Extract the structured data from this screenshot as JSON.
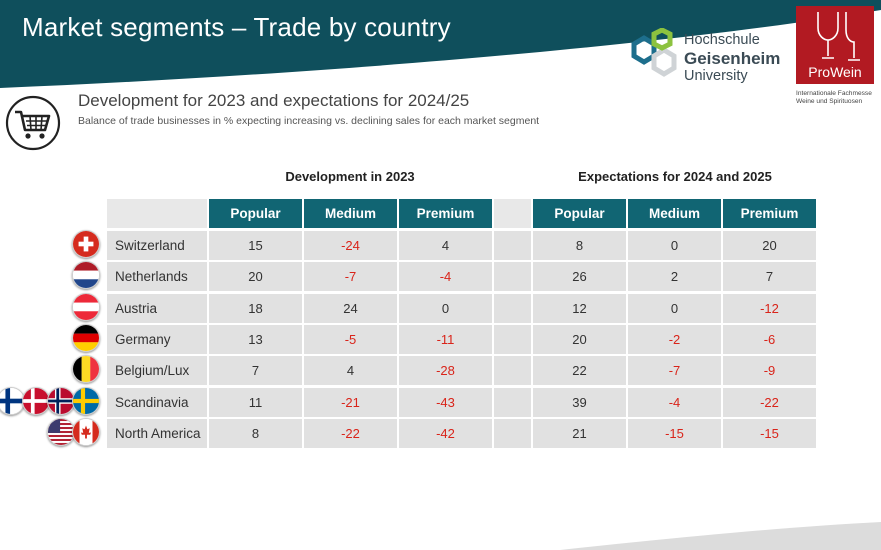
{
  "header": {
    "title": "Market segments – Trade by country"
  },
  "logos": {
    "hochschule_lines": [
      "Hochschule",
      "Geisenheim",
      "University"
    ],
    "prowein_name": "ProWein",
    "prowein_sub_lines": [
      "Internationale Fachmesse",
      "Weine und Spirituosen"
    ]
  },
  "section": {
    "subtitle": "Development for 2023 and expectations for 2024/25",
    "caption": "Balance of trade businesses in % expecting increasing vs. declining sales for each market segment"
  },
  "table": {
    "group_2023": "Development in 2023",
    "group_2024": "Expectations for 2024 and 2025",
    "columns": [
      "Popular",
      "Medium",
      "Premium",
      "Popular",
      "Medium",
      "Premium"
    ],
    "rows": [
      {
        "country": "Switzerland",
        "flags": [
          "switzerland-flag"
        ],
        "values": [
          "15",
          "-24",
          "4",
          "8",
          "0",
          "20"
        ]
      },
      {
        "country": "Netherlands",
        "flags": [
          "netherlands-flag"
        ],
        "values": [
          "20",
          "-7",
          "-4",
          "26",
          "2",
          "7"
        ]
      },
      {
        "country": "Austria",
        "flags": [
          "austria-flag"
        ],
        "values": [
          "18",
          "24",
          "0",
          "12",
          "0",
          "-12"
        ]
      },
      {
        "country": "Germany",
        "flags": [
          "germany-flag"
        ],
        "values": [
          "13",
          "-5",
          "-11",
          "20",
          "-2",
          "-6"
        ]
      },
      {
        "country": "Belgium/Lux",
        "flags": [
          "belgium-flag"
        ],
        "values": [
          "7",
          "4",
          "-28",
          "22",
          "-7",
          "-9"
        ]
      },
      {
        "country": "Scandinavia",
        "flags": [
          "finland-flag",
          "denmark-flag",
          "norway-flag",
          "sweden-flag"
        ],
        "values": [
          "11",
          "-21",
          "-43",
          "39",
          "-4",
          "-22"
        ]
      },
      {
        "country": "North America",
        "flags": [
          "usa-flag",
          "canada-flag"
        ],
        "values": [
          "8",
          "-22",
          "-42",
          "21",
          "-15",
          "-15"
        ]
      }
    ]
  },
  "colors": {
    "header_teal": "#0f4f5c",
    "table_header": "#116573",
    "negative_red": "#d9241a",
    "prowein_red": "#b21a22",
    "cell_grey": "#e1e1e1"
  }
}
